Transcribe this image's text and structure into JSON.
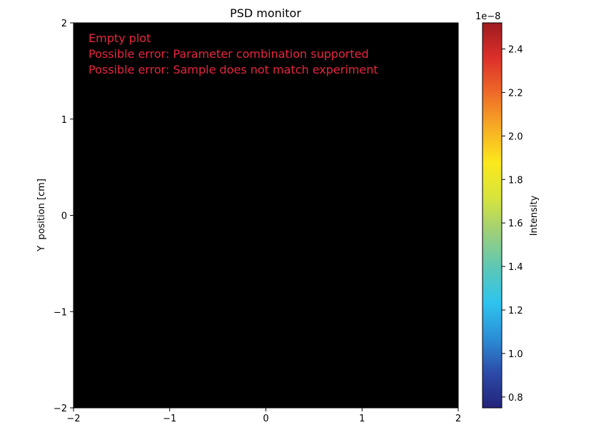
{
  "chart_data": {
    "type": "heatmap",
    "title": "PSD monitor",
    "xlabel": "",
    "ylabel": "Y  position [cm]",
    "xlim": [
      -2,
      2
    ],
    "ylim": [
      -2,
      2
    ],
    "x_ticks": [
      -2,
      -1,
      0,
      1,
      2
    ],
    "y_ticks": [
      -2,
      -1,
      0,
      1,
      2
    ],
    "x_tick_labels": [
      "−2",
      "−1",
      "0",
      "1",
      "2"
    ],
    "y_tick_labels": [
      "−2",
      "−1",
      "0",
      "1",
      "2"
    ],
    "grid": false,
    "plot_background": "#000000",
    "values": [],
    "annotations": [
      "Empty plot",
      "Possible error: Parameter combination supported",
      "Possible error: Sample does not match experiment"
    ],
    "annotation_color": "#e8263f",
    "colorbar": {
      "label": "Intensity",
      "offset_text": "1e−8",
      "range": [
        0.75,
        2.52
      ],
      "ticks": [
        0.8,
        1.0,
        1.2,
        1.4,
        1.6,
        1.8,
        2.0,
        2.2,
        2.4
      ],
      "tick_labels": [
        "0.8",
        "1.0",
        "1.2",
        "1.4",
        "1.6",
        "1.8",
        "2.0",
        "2.2",
        "2.4"
      ],
      "colormap": "jet",
      "colormap_stops": [
        "#23237a",
        "#2c4ba8",
        "#2b8fd6",
        "#2ec4ef",
        "#5cc7b6",
        "#9ccf7a",
        "#d7e43c",
        "#fbe81c",
        "#f7ad24",
        "#ee6a28",
        "#dc2f2a",
        "#9e1c20"
      ]
    }
  }
}
